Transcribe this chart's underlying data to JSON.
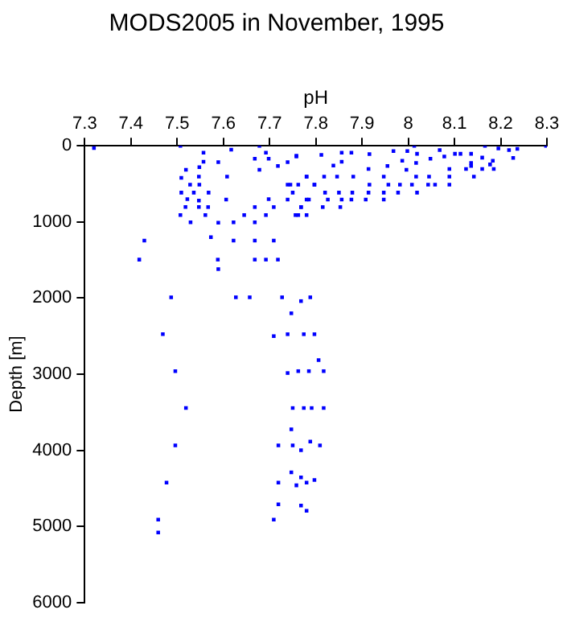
{
  "chart_data": {
    "type": "scatter",
    "title": "MODS2005 in November, 1995",
    "xlabel": "pH",
    "ylabel": "Depth [m]",
    "xlim": [
      7.3,
      8.3
    ],
    "xticks": [
      7.3,
      7.4,
      7.5,
      7.6,
      7.7,
      7.8,
      7.9,
      8,
      8.1,
      8.2,
      8.3
    ],
    "ylim": [
      6000,
      0
    ],
    "yticks": [
      0,
      1000,
      2000,
      3000,
      4000,
      5000,
      6000
    ],
    "grid": false,
    "legend": false,
    "marker": "square",
    "series": [
      {
        "color": "#0000ff",
        "x": [
          7.32,
          7.507,
          7.557,
          7.617,
          7.678,
          7.519,
          7.548,
          7.557,
          7.589,
          7.509,
          7.547,
          7.608,
          7.528,
          7.548,
          7.509,
          7.536,
          7.568,
          7.522,
          7.547,
          7.606,
          7.518,
          7.547,
          7.567,
          7.507,
          7.561,
          7.529,
          7.589,
          7.692,
          7.668,
          7.698,
          7.678,
          7.645,
          7.692,
          7.668,
          7.709,
          7.698,
          7.622,
          7.668,
          7.429,
          7.418,
          7.573,
          7.622,
          7.668,
          7.709,
          7.668,
          7.692,
          7.718,
          7.588,
          7.589,
          7.487,
          7.627,
          7.657,
          7.727,
          7.788,
          7.768,
          7.747,
          7.469,
          7.709,
          7.739,
          7.774,
          7.797,
          7.762,
          7.797,
          7.739,
          7.758,
          7.718,
          7.739,
          7.78,
          7.739,
          7.78,
          7.768,
          7.762,
          7.758,
          7.812,
          7.856,
          7.877,
          7.916,
          7.968,
          7.998,
          8.013,
          8.019,
          7.838,
          7.856,
          7.914,
          7.955,
          7.987,
          8.017,
          7.996,
          8.048,
          8.068,
          8.078,
          8.101,
          8.113,
          8.136,
          8.166,
          8.195,
          8.218,
          8.236,
          8.298,
          8.227,
          8.16,
          8.183,
          8.136,
          8.089,
          8.125,
          8.16,
          8.185,
          8.136,
          8.177,
          8.142,
          8.089,
          8.045,
          8.017,
          7.947,
          7.881,
          7.846,
          7.818,
          7.78,
          7.745,
          7.797,
          7.916,
          7.957,
          7.982,
          8.008,
          8.043,
          8.058,
          8.089,
          7.75,
          7.82,
          7.85,
          7.879,
          7.914,
          7.947,
          7.978,
          8.019,
          7.785,
          7.826,
          7.856,
          7.877,
          7.908,
          7.947,
          7.768,
          7.815,
          7.853,
          7.756,
          7.78,
          7.496,
          7.519,
          7.496,
          7.477,
          7.459,
          7.459,
          7.806,
          7.739,
          7.762,
          7.785,
          7.817,
          7.75,
          7.774,
          7.791,
          7.817,
          7.747,
          7.719,
          7.75,
          7.768,
          7.788,
          7.809,
          7.747,
          7.768,
          7.719,
          7.758,
          7.78,
          7.797,
          7.719,
          7.768,
          7.78,
          7.709
        ],
        "values": [
          30,
          0,
          90,
          50,
          0,
          315,
          280,
          210,
          215,
          420,
          405,
          405,
          510,
          510,
          615,
          615,
          615,
          700,
          720,
          705,
          805,
          805,
          805,
          910,
          910,
          1005,
          1010,
          90,
          170,
          170,
          315,
          910,
          910,
          805,
          805,
          700,
          1005,
          1005,
          1245,
          1495,
          1200,
          1245,
          1245,
          1245,
          1495,
          1495,
          1495,
          1495,
          1620,
          1990,
          1990,
          1990,
          1990,
          1990,
          2040,
          2200,
          2475,
          2500,
          2475,
          2475,
          2475,
          510,
          510,
          510,
          140,
          265,
          215,
          405,
          705,
          705,
          805,
          910,
          130,
          120,
          90,
          90,
          110,
          70,
          70,
          0,
          105,
          260,
          210,
          305,
          265,
          195,
          225,
          315,
          170,
          55,
          140,
          105,
          105,
          105,
          0,
          35,
          55,
          40,
          0,
          160,
          155,
          195,
          225,
          305,
          305,
          305,
          305,
          265,
          245,
          405,
          405,
          405,
          405,
          405,
          405,
          405,
          405,
          405,
          510,
          510,
          510,
          510,
          510,
          510,
          510,
          510,
          510,
          615,
          615,
          615,
          615,
          615,
          615,
          615,
          615,
          705,
          705,
          705,
          705,
          705,
          705,
          805,
          805,
          805,
          910,
          910,
          2960,
          3445,
          3935,
          4425,
          4910,
          5080,
          2815,
          2985,
          2960,
          2960,
          2960,
          3445,
          3445,
          3445,
          3445,
          3725,
          3935,
          3935,
          4000,
          3885,
          3935,
          4290,
          4355,
          4425,
          4460,
          4425,
          4390,
          4710,
          4725,
          4795,
          4910
        ]
      }
    ]
  }
}
